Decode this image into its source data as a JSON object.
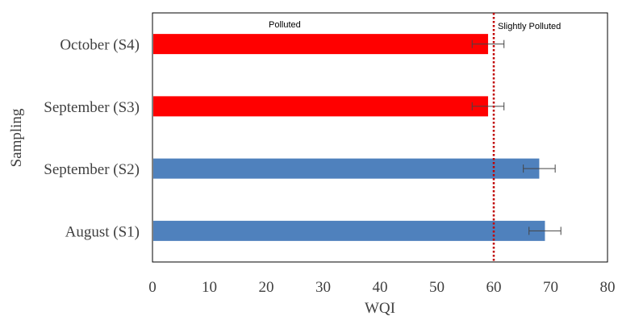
{
  "chart_data": {
    "type": "bar",
    "orientation": "horizontal",
    "xlabel": "WQI",
    "ylabel": "Sampling",
    "xlim": [
      0,
      80
    ],
    "xticks": [
      0,
      10,
      20,
      30,
      40,
      50,
      60,
      70,
      80
    ],
    "grid": false,
    "categories": [
      "October (S4)",
      "September (S3)",
      "September (S2)",
      "August (S1)"
    ],
    "values": [
      59,
      59,
      68,
      69
    ],
    "errors": [
      2.8,
      2.8,
      2.8,
      2.8
    ],
    "colors": [
      "#ff0000",
      "#ff0000",
      "#4f81bd",
      "#4f81bd"
    ],
    "threshold": {
      "value": 60,
      "color": "#c00000",
      "style": "dotted"
    },
    "annotations": [
      {
        "text": "Polluted",
        "region": "left"
      },
      {
        "text": "Slightly Polluted",
        "region": "right"
      }
    ]
  }
}
